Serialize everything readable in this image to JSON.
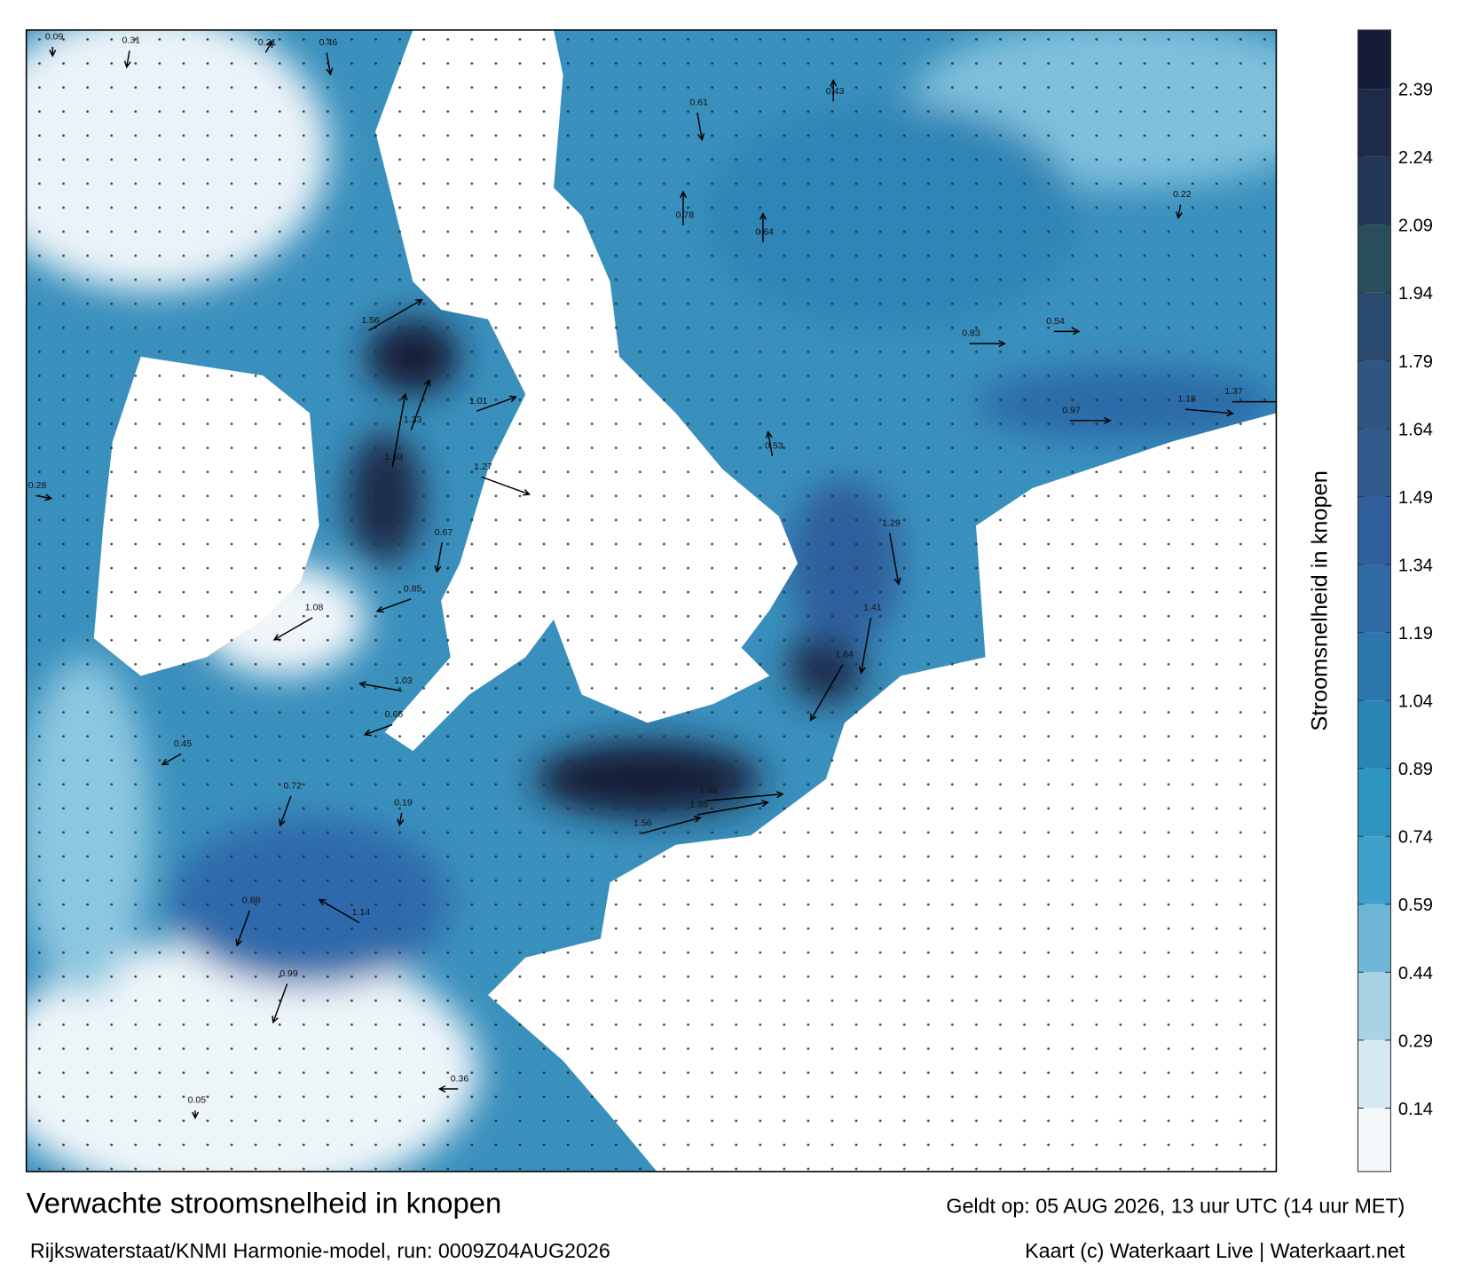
{
  "map": {
    "title": "Verwachte stroomsnelheid in knopen",
    "model": "Rijkswaterstaat/KNMI Harmonie-model, run: 0009Z04AUG2026",
    "valid": "Geldt op: 05 AUG 2026, 13 uur UTC (14 uur MET)",
    "credit": "Kaart (c) Waterkaart Live | Waterkaart.net",
    "colorbar": {
      "label": "Stroomsnelheid in knopen",
      "lim": [
        0,
        2.52
      ],
      "ticks": [
        0.14,
        0.29,
        0.44,
        0.59,
        0.74,
        0.89,
        1.04,
        1.19,
        1.34,
        1.49,
        1.64,
        1.79,
        1.94,
        2.09,
        2.24,
        2.39
      ],
      "colors": [
        "#f4f8fb",
        "#d6e8f1",
        "#a9d2e4",
        "#6fb6d6",
        "#3fa0cb",
        "#2d95c2",
        "#2a86b7",
        "#2c78ae",
        "#2f6aa5",
        "#2f5f9c",
        "#305a8c",
        "#2e5680",
        "#294a6e",
        "#2a4d5c",
        "#23375a",
        "#1d2a4a",
        "#141c38"
      ]
    },
    "speeds": [
      0.09,
      0.31,
      0.21,
      0.46,
      1.56,
      1.33,
      1.93,
      1.01,
      1.27,
      0.67,
      1.08,
      0.85,
      1.03,
      0.66,
      0.72,
      0.88,
      1.14,
      0.99,
      0.53,
      0.78,
      0.43,
      0.61,
      0.64,
      0.83,
      1.29,
      1.41,
      1.64,
      1.85,
      1.98,
      1.56,
      0.97,
      1.18,
      1.37,
      0.54,
      0.45,
      0.28,
      0.36,
      0.05,
      0.22,
      0.19
    ]
  }
}
